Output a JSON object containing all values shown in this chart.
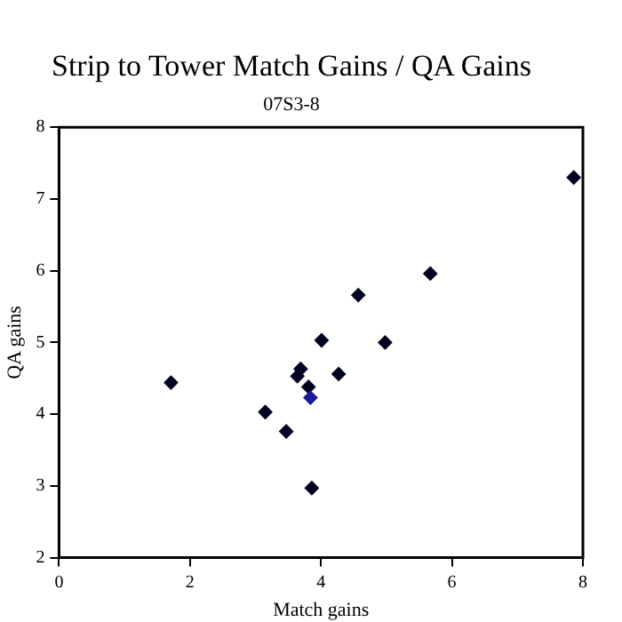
{
  "chart_data": {
    "type": "scatter",
    "title": "Strip to Tower Match Gains / QA Gains",
    "subtitle": "07S3-8",
    "xlabel": "Match gains",
    "ylabel": "QA gains",
    "x": [
      1.71,
      3.15,
      3.47,
      3.64,
      3.69,
      3.81,
      3.84,
      3.86,
      4.01,
      4.27,
      4.57,
      4.98,
      5.67,
      7.86
    ],
    "values": [
      4.44,
      4.03,
      3.76,
      4.53,
      4.63,
      4.38,
      4.23,
      2.97,
      5.03,
      4.56,
      5.66,
      5.0,
      5.96,
      7.3
    ],
    "colors": [
      "#000022",
      "#000022",
      "#000022",
      "#000022",
      "#000022",
      "#000022",
      "#1a1a9a",
      "#000022",
      "#000022",
      "#000022",
      "#000022",
      "#000022",
      "#000022",
      "#000022"
    ],
    "xlim": [
      0,
      8
    ],
    "ylim": [
      2,
      8
    ],
    "xticks": [
      0,
      2,
      4,
      6,
      8
    ],
    "yticks": [
      2,
      3,
      4,
      5,
      6,
      7,
      8
    ],
    "grid": false,
    "legend": false,
    "marker": "diamond"
  }
}
